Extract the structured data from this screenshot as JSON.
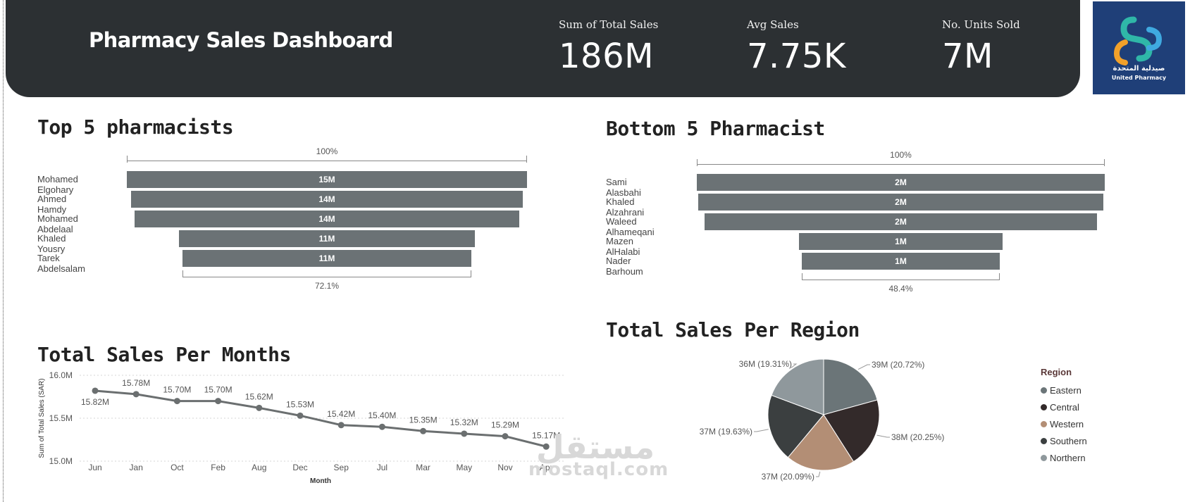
{
  "header": {
    "title": "Pharmacy Sales Dashboard",
    "kpis": [
      {
        "label": "Sum of Total Sales",
        "value": "186M"
      },
      {
        "label": "Avg Sales",
        "value": "7.75K"
      },
      {
        "label": "No. Units Sold",
        "value": "7M"
      }
    ],
    "logo": {
      "arabic": "صيدلية المتحدة",
      "english": "United Pharmacy"
    }
  },
  "colors": {
    "header_bg": "#2c3033",
    "bar": "#6b7275",
    "line": "#6b6f70",
    "eastern": "#6b7578",
    "central": "#332a2a",
    "western": "#b38e75",
    "southern": "#3b3f40",
    "northern": "#8f989c"
  },
  "watermark": {
    "arabic": "مستقل",
    "english": "mostaql.com"
  },
  "chart_data": [
    {
      "type": "bar",
      "subtype": "funnel",
      "title": "Top 5 pharmacists",
      "categories": [
        "Mohamed Elgohary",
        "Ahmed Hamdy",
        "Mohamed Abdelaal",
        "Khaled Yousry",
        "Tarek Abdelsalam"
      ],
      "values": [
        15,
        14,
        14,
        11,
        11
      ],
      "value_labels": [
        "15M",
        "14M",
        "14M",
        "11M",
        "11M"
      ],
      "top_percent": "100%",
      "bottom_percent": "72.1%",
      "ratio": [
        1.0,
        0.979,
        0.96,
        0.741,
        0.721
      ]
    },
    {
      "type": "bar",
      "subtype": "funnel",
      "title": "Bottom 5 Pharmacist",
      "categories": [
        "Sami Alasbahi",
        "Khaled Alzahrani",
        "Waleed Alhameqani",
        "Mazen AlHalabi",
        "Nader Barhoum"
      ],
      "values": [
        2,
        2,
        2,
        1,
        1
      ],
      "value_labels": [
        "2M",
        "2M",
        "2M",
        "1M",
        "1M"
      ],
      "top_percent": "100%",
      "bottom_percent": "48.4%",
      "ratio": [
        1.0,
        0.994,
        0.963,
        0.5,
        0.484
      ]
    },
    {
      "type": "line",
      "title": "Total Sales Per Months",
      "xlabel": "Month",
      "ylabel": "Sum of Total Sales (SAR)",
      "ylim": [
        15.0,
        16.0
      ],
      "y_ticks": [
        "15.0M",
        "15.5M",
        "16.0M"
      ],
      "categories": [
        "Jun",
        "Jan",
        "Oct",
        "Feb",
        "Aug",
        "Dec",
        "Sep",
        "Jul",
        "Mar",
        "May",
        "Nov",
        "Apr"
      ],
      "values": [
        15.82,
        15.78,
        15.7,
        15.7,
        15.62,
        15.53,
        15.42,
        15.4,
        15.35,
        15.32,
        15.29,
        15.17
      ],
      "data_labels": [
        "15.82M",
        "15.78M",
        "15.70M",
        "15.70M",
        "15.62M",
        "15.53M",
        "15.42M",
        "15.40M",
        "15.35M",
        "15.32M",
        "15.29M",
        "15.17M"
      ],
      "grid": true
    },
    {
      "type": "pie",
      "title": "Total Sales Per Region",
      "legend_title": "Region",
      "legend_position": "right",
      "labels": [
        "Eastern",
        "Central",
        "Western",
        "Southern",
        "Northern"
      ],
      "values": [
        20.72,
        20.25,
        20.09,
        19.63,
        19.31
      ],
      "data_labels": [
        "39M (20.72%)",
        "38M (20.25%)",
        "37M (20.09%)",
        "37M (19.63%)",
        "36M (19.31%)"
      ]
    }
  ]
}
